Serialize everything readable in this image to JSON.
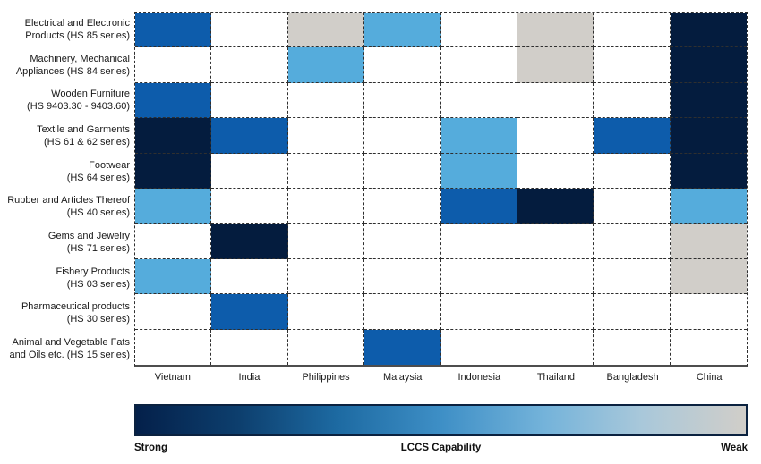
{
  "chart_data": {
    "type": "heatmap",
    "title": "",
    "x_categories": [
      "Vietnam",
      "India",
      "Philippines",
      "Malaysia",
      "Indonesia",
      "Thailand",
      "Bangladesh",
      "China"
    ],
    "y_categories": [
      "Electrical and Electronic\nProducts (HS 85 series)",
      "Machinery, Mechanical\nAppliances (HS 84 series)",
      "Wooden Furniture\n(HS 9403.30 - 9403.60)",
      "Textile and Garments\n(HS 61 & 62 series)",
      "Footwear\n(HS 64 series)",
      "Rubber and Articles Thereof\n(HS 40 series)",
      "Gems and Jewelry\n(HS 71 series)",
      "Fishery Products\n(HS 03 series)",
      "Pharmaceutical products\n(HS 30 series)",
      "Animal and Vegetable Fats\nand Oils etc. (HS 15 series)"
    ],
    "capability_scale_note": "strong = darkest blue, weak = light gray, none = white",
    "level_colors": {
      "strong": "#041c3e",
      "good": "#0d5cab",
      "moderate": "#55acdc",
      "weak": "#d1cec9",
      "none": "#ffffff"
    },
    "cells": [
      [
        "good",
        "none",
        "weak",
        "moderate",
        "none",
        "weak",
        "none",
        "strong"
      ],
      [
        "none",
        "none",
        "moderate",
        "none",
        "none",
        "weak",
        "none",
        "strong"
      ],
      [
        "good",
        "none",
        "none",
        "none",
        "none",
        "none",
        "none",
        "strong"
      ],
      [
        "strong",
        "good",
        "none",
        "none",
        "moderate",
        "none",
        "good",
        "strong"
      ],
      [
        "strong",
        "none",
        "none",
        "none",
        "moderate",
        "none",
        "none",
        "strong"
      ],
      [
        "moderate",
        "none",
        "none",
        "none",
        "good",
        "strong",
        "none",
        "moderate"
      ],
      [
        "none",
        "strong",
        "none",
        "none",
        "none",
        "none",
        "none",
        "weak"
      ],
      [
        "moderate",
        "none",
        "none",
        "none",
        "none",
        "none",
        "none",
        "weak"
      ],
      [
        "none",
        "good",
        "none",
        "none",
        "none",
        "none",
        "none",
        "none"
      ],
      [
        "none",
        "none",
        "none",
        "good",
        "none",
        "none",
        "none",
        "none"
      ]
    ],
    "legend": {
      "left_label": "Strong",
      "center_label": "LCCS Capability",
      "right_label": "Weak",
      "gradient_stops": [
        "#04204a",
        "#0d3f6e",
        "#1d6aa2",
        "#3e8fc6",
        "#74b3da",
        "#a9c8da",
        "#d1cec9"
      ]
    }
  }
}
